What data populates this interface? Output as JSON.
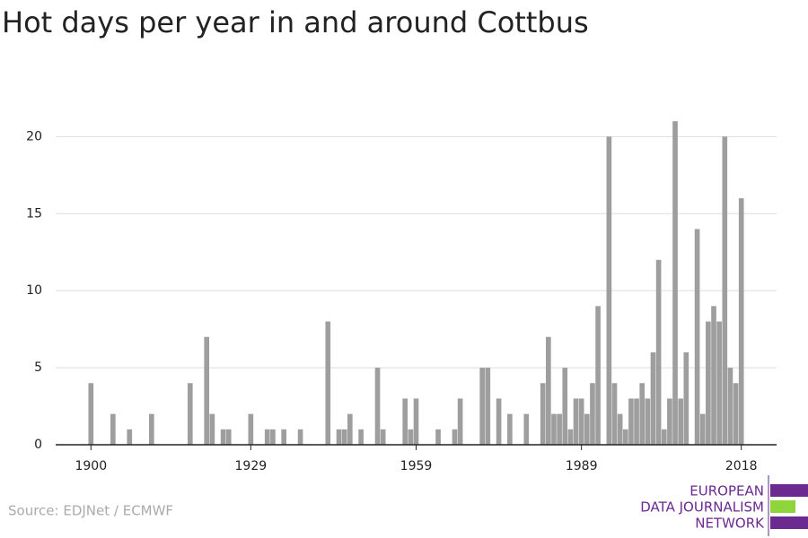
{
  "chart_data": {
    "type": "bar",
    "title": "Hot days per year in and around Cottbus",
    "x": [
      1900,
      1904,
      1907,
      1911,
      1918,
      1921,
      1922,
      1924,
      1925,
      1929,
      1932,
      1933,
      1935,
      1938,
      1943,
      1945,
      1946,
      1947,
      1949,
      1952,
      1953,
      1957,
      1958,
      1959,
      1963,
      1966,
      1967,
      1971,
      1972,
      1974,
      1976,
      1979,
      1982,
      1983,
      1984,
      1985,
      1986,
      1987,
      1988,
      1989,
      1990,
      1991,
      1992,
      1994,
      1995,
      1996,
      1997,
      1998,
      1999,
      2000,
      2001,
      2002,
      2003,
      2004,
      2005,
      2006,
      2007,
      2008,
      2010,
      2011,
      2012,
      2013,
      2014,
      2015,
      2016,
      2017,
      2018
    ],
    "values": [
      4,
      2,
      1,
      2,
      4,
      7,
      2,
      1,
      1,
      2,
      1,
      1,
      1,
      1,
      8,
      1,
      1,
      2,
      1,
      5,
      1,
      3,
      1,
      3,
      1,
      1,
      3,
      5,
      5,
      3,
      2,
      2,
      4,
      7,
      2,
      2,
      5,
      1,
      3,
      3,
      2,
      4,
      9,
      20,
      4,
      2,
      1,
      3,
      3,
      4,
      3,
      6,
      12,
      1,
      3,
      21,
      3,
      6,
      14,
      2,
      8,
      9,
      8,
      20,
      5,
      4,
      16
    ],
    "color": "#9e9e9e",
    "xlim": [
      1893.6,
      2024.4
    ],
    "xticks": [
      1900,
      1929,
      1959,
      1989,
      2018
    ],
    "ylim": [
      0,
      22
    ],
    "yticks": [
      0,
      5,
      10,
      15,
      20
    ],
    "grid": true,
    "source": "Source: EDJNet / ECMWF"
  },
  "logo": {
    "lines": [
      "EUROPEAN",
      "DATA JOURNALISM",
      "NETWORK"
    ]
  }
}
